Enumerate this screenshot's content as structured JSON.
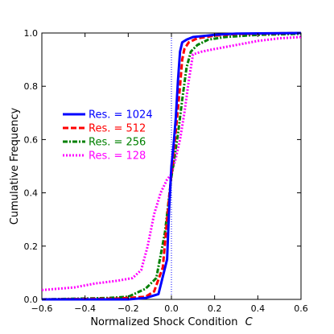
{
  "chart_data": {
    "type": "line",
    "xlabel": "Normalized Shock Condition",
    "xlabel_symbol": "C",
    "ylabel": "Cumulative Frequency",
    "xlim": [
      -0.6,
      0.6
    ],
    "ylim": [
      0.0,
      1.0
    ],
    "xticks": [
      "−0.6",
      "−0.4",
      "−0.2",
      "0.0",
      "0.2",
      "0.4",
      "0.6"
    ],
    "yticks": [
      "0.0",
      "0.2",
      "0.4",
      "0.6",
      "0.8",
      "1.0"
    ],
    "reference_line": {
      "x": 0.0,
      "style": "dotted",
      "color": "#0000ff"
    },
    "grid": false,
    "legend_position": "center-left",
    "series": [
      {
        "name": "Res. = 1024",
        "color": "#0000ff",
        "style": "solid",
        "x": [
          -0.6,
          -0.2,
          -0.12,
          -0.06,
          -0.02,
          -0.01,
          0.0,
          0.01,
          0.02,
          0.03,
          0.04,
          0.05,
          0.07,
          0.1,
          0.2,
          0.3,
          0.6
        ],
        "y": [
          0.0,
          0.0,
          0.005,
          0.02,
          0.15,
          0.35,
          0.5,
          0.58,
          0.68,
          0.82,
          0.93,
          0.965,
          0.975,
          0.985,
          0.993,
          0.998,
          1.0
        ]
      },
      {
        "name": "Res. = 512",
        "color": "#ff0000",
        "style": "dashed",
        "x": [
          -0.6,
          -0.25,
          -0.12,
          -0.08,
          -0.04,
          -0.02,
          0.0,
          0.02,
          0.04,
          0.05,
          0.06,
          0.08,
          0.12,
          0.2,
          0.3,
          0.6
        ],
        "y": [
          0.0,
          0.003,
          0.01,
          0.03,
          0.12,
          0.3,
          0.47,
          0.63,
          0.8,
          0.9,
          0.94,
          0.965,
          0.98,
          0.99,
          0.996,
          1.0
        ]
      },
      {
        "name": "Res. = 256",
        "color": "#008000",
        "style": "dashdot",
        "x": [
          -0.6,
          -0.3,
          -0.2,
          -0.12,
          -0.07,
          -0.03,
          0.0,
          0.03,
          0.05,
          0.07,
          0.09,
          0.12,
          0.17,
          0.25,
          0.4,
          0.6
        ],
        "y": [
          0.0,
          0.005,
          0.01,
          0.04,
          0.08,
          0.25,
          0.46,
          0.62,
          0.75,
          0.87,
          0.93,
          0.955,
          0.975,
          0.985,
          0.993,
          0.997
        ]
      },
      {
        "name": "Res. = 128",
        "color": "#ff00ff",
        "style": "dotted",
        "x": [
          -0.6,
          -0.45,
          -0.35,
          -0.25,
          -0.18,
          -0.14,
          -0.11,
          -0.08,
          -0.05,
          -0.02,
          0.0,
          0.02,
          0.04,
          0.06,
          0.08,
          0.1,
          0.14,
          0.2,
          0.3,
          0.4,
          0.5,
          0.6
        ],
        "y": [
          0.035,
          0.045,
          0.06,
          0.07,
          0.08,
          0.11,
          0.2,
          0.32,
          0.4,
          0.45,
          0.47,
          0.53,
          0.6,
          0.7,
          0.82,
          0.92,
          0.93,
          0.94,
          0.955,
          0.97,
          0.98,
          0.985
        ]
      }
    ]
  }
}
